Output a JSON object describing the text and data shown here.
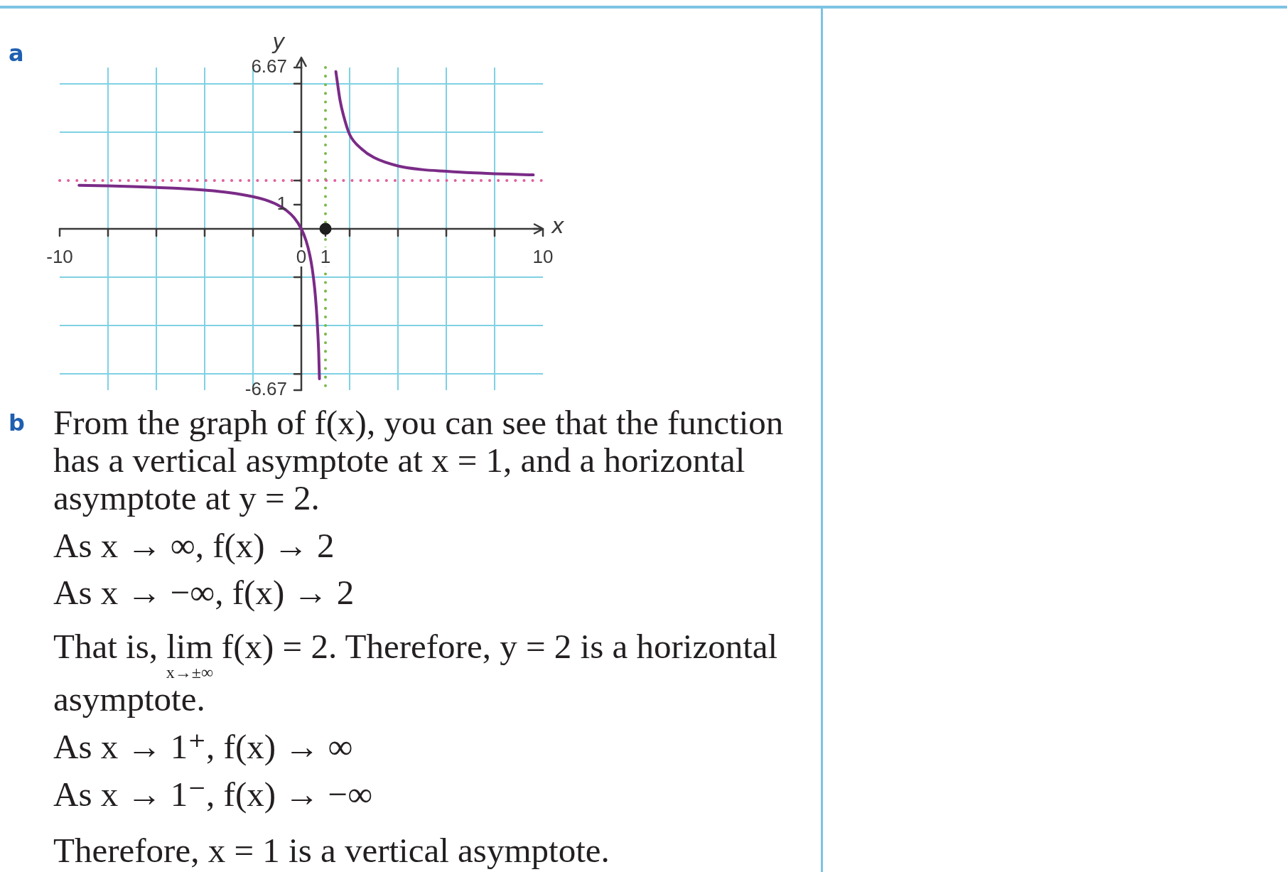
{
  "chart_data": {
    "type": "line",
    "xlabel": "x",
    "ylabel": "y",
    "annotations": [
      "a",
      "b",
      "From the graph of f(x), you can see that the function has a vertical asymptote at x = 1, and a horizontal asymptote at y = 2.",
      "As x → ∞, f(x) → 2",
      "As x → −∞, f(x) → 2",
      "That is, lim$_{x→±∞}$ f(x) = 2. Therefore, y = 2 is a horizontal asymptote.",
      "As x → 1⁺, f(x) → ∞",
      "As x → 1⁻, f(x) → −∞",
      "Therefore, x = 1 is a vertical asymptote."
    ],
    "xlim": [
      -10,
      10
    ],
    "ylim": [
      -6.67,
      6.67
    ],
    "xticks": [
      -10,
      {
        "value": -8,
        "label": null
      },
      {
        "value": -6,
        "label": null
      },
      {
        "value": -4,
        "label": null
      },
      {
        "value": -2,
        "label": null
      },
      0,
      1,
      {
        "value": 2,
        "label": null
      },
      {
        "value": 4,
        "label": null
      },
      {
        "value": 6,
        "label": null
      },
      {
        "value": 8,
        "label": null
      },
      10
    ],
    "yticks": [
      -6.67,
      {
        "value": -6,
        "label": null
      },
      {
        "value": -4,
        "label": null
      },
      {
        "value": -2,
        "label": null
      },
      1,
      {
        "value": 2,
        "label": null
      },
      {
        "value": 4,
        "label": null
      },
      {
        "value": 6,
        "label": null
      },
      6.67
    ],
    "grid": true,
    "ref_lines": [
      {
        "axis": "x",
        "value": 1,
        "color": "#79b84a",
        "line_style": "dotted"
      },
      {
        "axis": "y",
        "value": 2,
        "color": "#e0609e",
        "line_style": "dotted"
      }
    ],
    "series": [
      {
        "x": [
          -9.2,
          -8,
          -7,
          -6,
          -5,
          -4,
          -3,
          -2,
          -1.5,
          -1,
          -0.6,
          -0.3,
          0,
          0.2,
          0.35,
          0.45,
          0.55,
          0.62,
          0.68,
          0.72,
          0.75,
          1,
          1.43,
          1.5,
          1.6,
          1.75,
          2,
          2.5,
          3,
          4,
          5,
          6,
          7,
          8,
          9,
          9.6
        ],
        "values": [
          1.8,
          1.78,
          1.75,
          1.71,
          1.67,
          1.6,
          1.5,
          1.33,
          1.2,
          1.0,
          0.75,
          0.46,
          0,
          -0.5,
          -1.08,
          -1.64,
          -2.44,
          -3.26,
          -4.25,
          -5.14,
          -6.2,
          null,
          6.5,
          6.0,
          5.33,
          4.67,
          3.9,
          3.3,
          2.95,
          2.6,
          2.45,
          2.38,
          2.32,
          2.28,
          2.25,
          2.23
        ],
        "color": "#7a2b87"
      },
      {
        "type": "scatter",
        "x": [
          1
        ],
        "values": [
          0
        ],
        "color": "#1e1e1e",
        "marker": "circle"
      }
    ]
  }
}
